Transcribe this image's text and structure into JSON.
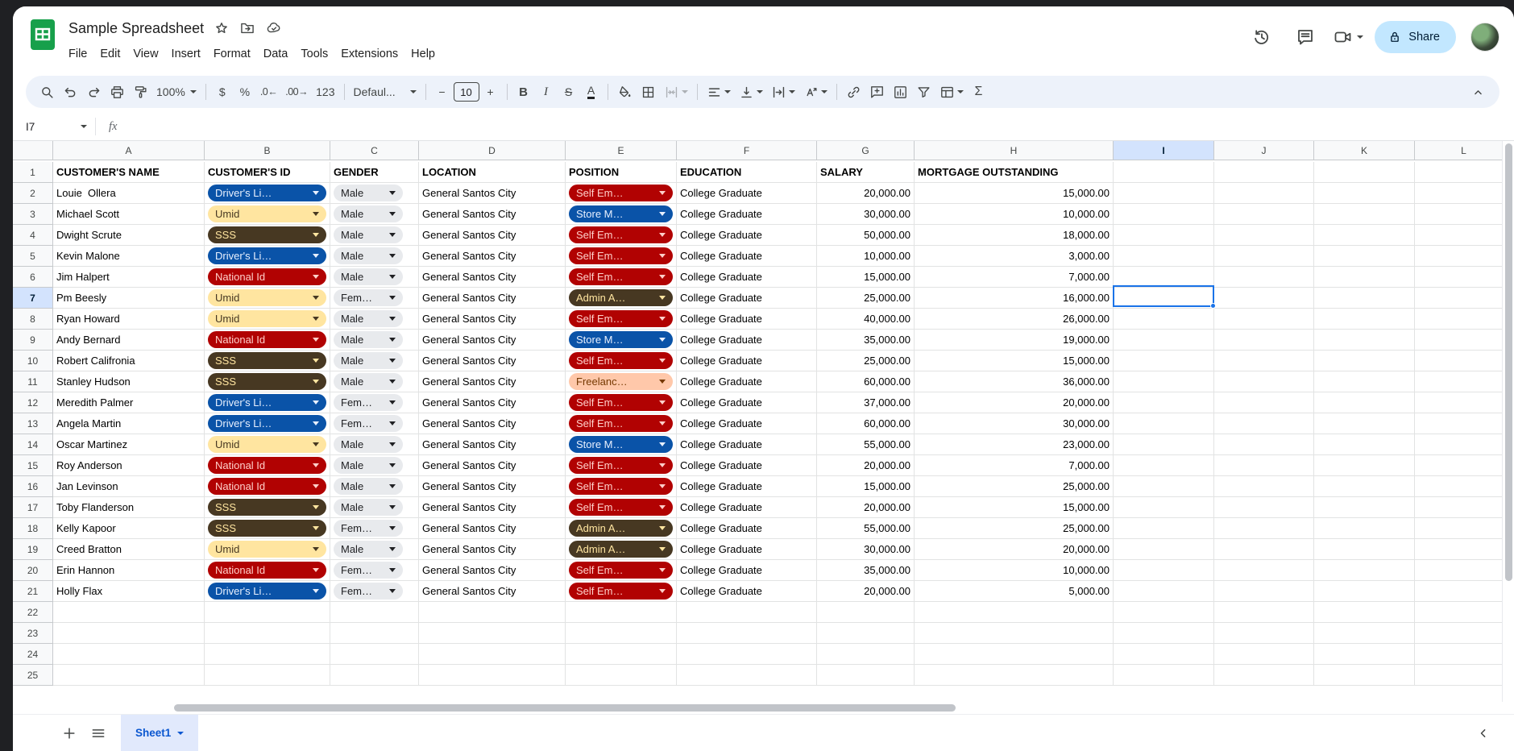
{
  "app": {
    "title": "Sample Spreadsheet",
    "menu": [
      "File",
      "Edit",
      "View",
      "Insert",
      "Format",
      "Data",
      "Tools",
      "Extensions",
      "Help"
    ],
    "share_label": "Share"
  },
  "toolbar": {
    "zoom_value": "100%",
    "currency_label": "$",
    "percent_label": "%",
    "decrease_decimal_label": ".0←",
    "increase_decimal_label": ".00→",
    "more_formats_label": "123",
    "font_value": "Defaul...",
    "minus_label": "−",
    "font_size_value": "10",
    "plus_label": "+",
    "bold_label": "B",
    "italic_label": "I",
    "strikethrough_label": "S",
    "text_color_label": "A",
    "functions_label": "Σ"
  },
  "formula_bar": {
    "name_box": "I7",
    "fx_label": "fx"
  },
  "grid": {
    "columns": [
      "A",
      "B",
      "C",
      "D",
      "E",
      "F",
      "G",
      "H",
      "I",
      "J",
      "K",
      "L"
    ],
    "row_count": 25,
    "header_row": [
      "CUSTOMER'S NAME",
      "CUSTOMER'S ID",
      "GENDER",
      "LOCATION",
      "POSITION",
      "EDUCATION",
      "SALARY",
      "MORTGAGE OUTSTANDING"
    ],
    "selection": {
      "cell": "I7",
      "column": "I",
      "row": 7
    },
    "chip_colors": {
      "dark-blue": {
        "bg": "#0a53a8",
        "fg": "#e8f0fe"
      },
      "dark-red": {
        "bg": "#b10202",
        "fg": "#ffcfc9"
      },
      "light-yellow": {
        "bg": "#ffe5a0",
        "fg": "#473822"
      },
      "dark-yellow": {
        "bg": "#473822",
        "fg": "#ffe5a0"
      },
      "light-orange": {
        "bg": "#ffc8aa",
        "fg": "#753800"
      },
      "gray": {
        "bg": "#e8eaed",
        "fg": "#202124"
      }
    },
    "rows": [
      {
        "row": 2,
        "name": "Louie  Ollera",
        "id": {
          "label": "Driver's Li…",
          "color": "dark-blue"
        },
        "gender": "Male",
        "location": "General Santos City",
        "position": {
          "label": "Self Em…",
          "color": "dark-red"
        },
        "education": "College Graduate",
        "salary": "20,000.00",
        "mortgage": "15,000.00"
      },
      {
        "row": 3,
        "name": "Michael Scott",
        "id": {
          "label": "Umid",
          "color": "light-yellow"
        },
        "gender": "Male",
        "location": "General Santos City",
        "position": {
          "label": "Store M…",
          "color": "dark-blue"
        },
        "education": "College Graduate",
        "salary": "30,000.00",
        "mortgage": "10,000.00"
      },
      {
        "row": 4,
        "name": "Dwight Scrute",
        "id": {
          "label": "SSS",
          "color": "dark-yellow"
        },
        "gender": "Male",
        "location": "General Santos City",
        "position": {
          "label": "Self Em…",
          "color": "dark-red"
        },
        "education": "College Graduate",
        "salary": "50,000.00",
        "mortgage": "18,000.00"
      },
      {
        "row": 5,
        "name": "Kevin Malone",
        "id": {
          "label": "Driver's Li…",
          "color": "dark-blue"
        },
        "gender": "Male",
        "location": "General Santos City",
        "position": {
          "label": "Self Em…",
          "color": "dark-red"
        },
        "education": "College Graduate",
        "salary": "10,000.00",
        "mortgage": "3,000.00"
      },
      {
        "row": 6,
        "name": "Jim Halpert",
        "id": {
          "label": "National Id",
          "color": "dark-red"
        },
        "gender": "Male",
        "location": "General Santos City",
        "position": {
          "label": "Self Em…",
          "color": "dark-red"
        },
        "education": "College Graduate",
        "salary": "15,000.00",
        "mortgage": "7,000.00"
      },
      {
        "row": 7,
        "name": "Pm Beesly",
        "id": {
          "label": "Umid",
          "color": "light-yellow"
        },
        "gender": "Fem…",
        "location": "General Santos City",
        "position": {
          "label": "Admin A…",
          "color": "dark-yellow"
        },
        "education": "College Graduate",
        "salary": "25,000.00",
        "mortgage": "16,000.00"
      },
      {
        "row": 8,
        "name": "Ryan Howard",
        "id": {
          "label": "Umid",
          "color": "light-yellow"
        },
        "gender": "Male",
        "location": "General Santos City",
        "position": {
          "label": "Self Em…",
          "color": "dark-red"
        },
        "education": "College Graduate",
        "salary": "40,000.00",
        "mortgage": "26,000.00"
      },
      {
        "row": 9,
        "name": "Andy Bernard",
        "id": {
          "label": "National Id",
          "color": "dark-red"
        },
        "gender": "Male",
        "location": "General Santos City",
        "position": {
          "label": "Store M…",
          "color": "dark-blue"
        },
        "education": "College Graduate",
        "salary": "35,000.00",
        "mortgage": "19,000.00"
      },
      {
        "row": 10,
        "name": "Robert Califronia",
        "id": {
          "label": "SSS",
          "color": "dark-yellow"
        },
        "gender": "Male",
        "location": "General Santos City",
        "position": {
          "label": "Self Em…",
          "color": "dark-red"
        },
        "education": "College Graduate",
        "salary": "25,000.00",
        "mortgage": "15,000.00"
      },
      {
        "row": 11,
        "name": "Stanley Hudson",
        "id": {
          "label": "SSS",
          "color": "dark-yellow"
        },
        "gender": "Male",
        "location": "General Santos City",
        "position": {
          "label": "Freelanc…",
          "color": "light-orange"
        },
        "education": "College Graduate",
        "salary": "60,000.00",
        "mortgage": "36,000.00"
      },
      {
        "row": 12,
        "name": "Meredith Palmer",
        "id": {
          "label": "Driver's Li…",
          "color": "dark-blue"
        },
        "gender": "Fem…",
        "location": "General Santos City",
        "position": {
          "label": "Self Em…",
          "color": "dark-red"
        },
        "education": "College Graduate",
        "salary": "37,000.00",
        "mortgage": "20,000.00"
      },
      {
        "row": 13,
        "name": "Angela Martin",
        "id": {
          "label": "Driver's Li…",
          "color": "dark-blue"
        },
        "gender": "Fem…",
        "location": "General Santos City",
        "position": {
          "label": "Self Em…",
          "color": "dark-red"
        },
        "education": "College Graduate",
        "salary": "60,000.00",
        "mortgage": "30,000.00"
      },
      {
        "row": 14,
        "name": "Oscar Martinez",
        "id": {
          "label": "Umid",
          "color": "light-yellow"
        },
        "gender": "Male",
        "location": "General Santos City",
        "position": {
          "label": "Store M…",
          "color": "dark-blue"
        },
        "education": "College Graduate",
        "salary": "55,000.00",
        "mortgage": "23,000.00"
      },
      {
        "row": 15,
        "name": "Roy Anderson",
        "id": {
          "label": "National Id",
          "color": "dark-red"
        },
        "gender": "Male",
        "location": "General Santos City",
        "position": {
          "label": "Self Em…",
          "color": "dark-red"
        },
        "education": "College Graduate",
        "salary": "20,000.00",
        "mortgage": "7,000.00"
      },
      {
        "row": 16,
        "name": "Jan Levinson",
        "id": {
          "label": "National Id",
          "color": "dark-red"
        },
        "gender": "Male",
        "location": "General Santos City",
        "position": {
          "label": "Self Em…",
          "color": "dark-red"
        },
        "education": "College Graduate",
        "salary": "15,000.00",
        "mortgage": "25,000.00"
      },
      {
        "row": 17,
        "name": "Toby Flanderson",
        "id": {
          "label": "SSS",
          "color": "dark-yellow"
        },
        "gender": "Male",
        "location": "General Santos City",
        "position": {
          "label": "Self Em…",
          "color": "dark-red"
        },
        "education": "College Graduate",
        "salary": "20,000.00",
        "mortgage": "15,000.00"
      },
      {
        "row": 18,
        "name": "Kelly Kapoor",
        "id": {
          "label": "SSS",
          "color": "dark-yellow"
        },
        "gender": "Fem…",
        "location": "General Santos City",
        "position": {
          "label": "Admin A…",
          "color": "dark-yellow"
        },
        "education": "College Graduate",
        "salary": "55,000.00",
        "mortgage": "25,000.00"
      },
      {
        "row": 19,
        "name": "Creed Bratton",
        "id": {
          "label": "Umid",
          "color": "light-yellow"
        },
        "gender": "Male",
        "location": "General Santos City",
        "position": {
          "label": "Admin A…",
          "color": "dark-yellow"
        },
        "education": "College Graduate",
        "salary": "30,000.00",
        "mortgage": "20,000.00"
      },
      {
        "row": 20,
        "name": "Erin Hannon",
        "id": {
          "label": "National Id",
          "color": "dark-red"
        },
        "gender": "Fem…",
        "location": "General Santos City",
        "position": {
          "label": "Self Em…",
          "color": "dark-red"
        },
        "education": "College Graduate",
        "salary": "35,000.00",
        "mortgage": "10,000.00"
      },
      {
        "row": 21,
        "name": "Holly Flax",
        "id": {
          "label": "Driver's Li…",
          "color": "dark-blue"
        },
        "gender": "Fem…",
        "location": "General Santos City",
        "position": {
          "label": "Self Em…",
          "color": "dark-red"
        },
        "education": "College Graduate",
        "salary": "20,000.00",
        "mortgage": "5,000.00"
      }
    ]
  },
  "bottombar": {
    "sheet_tab": "Sheet1"
  }
}
